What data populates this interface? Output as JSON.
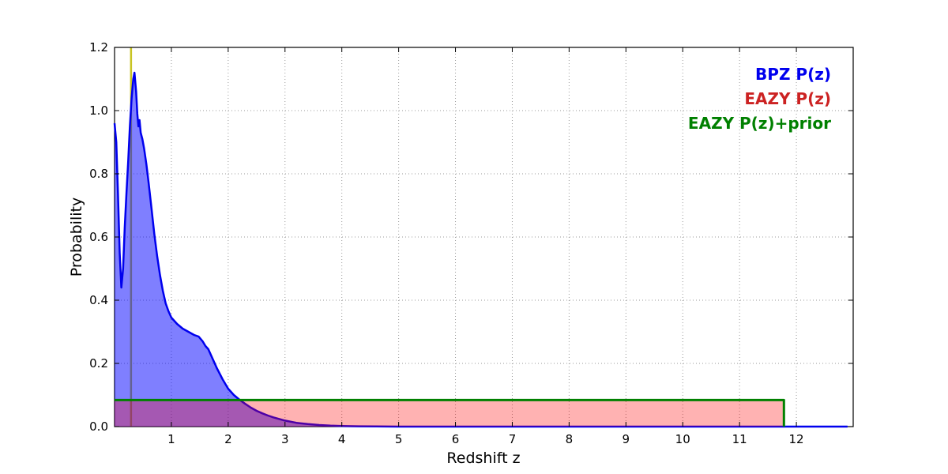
{
  "chart_data": {
    "type": "area",
    "title": "",
    "xlabel": "Redshift z",
    "ylabel": "Probability",
    "xlim": [
      0,
      13.0
    ],
    "ylim": [
      0,
      1.2
    ],
    "xticks": [
      1,
      2,
      3,
      4,
      5,
      6,
      7,
      8,
      9,
      10,
      11,
      12
    ],
    "yticks": [
      0.0,
      0.2,
      0.4,
      0.6,
      0.8,
      1.0,
      1.2
    ],
    "grid": true,
    "grid_color": "#9a9a9a",
    "legend_position": "upper right",
    "vline": {
      "x": 0.29,
      "color": "#c8c423",
      "width": 2.5
    },
    "series": [
      {
        "name": "BPZ P(z)",
        "color": "#0000ee",
        "fill": "rgba(0,0,255,0.5)",
        "line_width": 2.5,
        "points": [
          [
            0.0,
            0.96
          ],
          [
            0.03,
            0.9
          ],
          [
            0.06,
            0.74
          ],
          [
            0.09,
            0.55
          ],
          [
            0.12,
            0.44
          ],
          [
            0.15,
            0.5
          ],
          [
            0.18,
            0.63
          ],
          [
            0.21,
            0.74
          ],
          [
            0.24,
            0.84
          ],
          [
            0.27,
            0.95
          ],
          [
            0.3,
            1.04
          ],
          [
            0.33,
            1.1
          ],
          [
            0.35,
            1.12
          ],
          [
            0.38,
            1.06
          ],
          [
            0.4,
            0.99
          ],
          [
            0.42,
            0.95
          ],
          [
            0.44,
            0.97
          ],
          [
            0.46,
            0.93
          ],
          [
            0.49,
            0.91
          ],
          [
            0.52,
            0.88
          ],
          [
            0.56,
            0.83
          ],
          [
            0.6,
            0.77
          ],
          [
            0.65,
            0.69
          ],
          [
            0.7,
            0.61
          ],
          [
            0.75,
            0.54
          ],
          [
            0.8,
            0.48
          ],
          [
            0.85,
            0.43
          ],
          [
            0.9,
            0.39
          ],
          [
            0.95,
            0.365
          ],
          [
            1.0,
            0.345
          ],
          [
            1.1,
            0.325
          ],
          [
            1.2,
            0.31
          ],
          [
            1.3,
            0.3
          ],
          [
            1.4,
            0.29
          ],
          [
            1.48,
            0.285
          ],
          [
            1.55,
            0.27
          ],
          [
            1.6,
            0.255
          ],
          [
            1.65,
            0.245
          ],
          [
            1.7,
            0.225
          ],
          [
            1.8,
            0.185
          ],
          [
            1.9,
            0.15
          ],
          [
            2.0,
            0.12
          ],
          [
            2.1,
            0.1
          ],
          [
            2.2,
            0.085
          ],
          [
            2.3,
            0.072
          ],
          [
            2.4,
            0.06
          ],
          [
            2.5,
            0.05
          ],
          [
            2.6,
            0.042
          ],
          [
            2.7,
            0.035
          ],
          [
            2.8,
            0.029
          ],
          [
            2.9,
            0.024
          ],
          [
            3.0,
            0.019
          ],
          [
            3.2,
            0.012
          ],
          [
            3.4,
            0.008
          ],
          [
            3.6,
            0.005
          ],
          [
            3.8,
            0.003
          ],
          [
            4.0,
            0.002
          ],
          [
            4.3,
            0.001
          ],
          [
            4.6,
            0.0005
          ],
          [
            5.0,
            0
          ],
          [
            12.9,
            0
          ]
        ]
      },
      {
        "name": "EAZY P(z)",
        "color": "#cc2222",
        "fill": "rgba(255,0,0,0.3)",
        "line_width": 2,
        "points": [
          [
            0,
            0.084
          ],
          [
            11.78,
            0.084
          ],
          [
            11.78,
            0
          ]
        ]
      },
      {
        "name": "EAZY P(z)+prior",
        "color": "#008000",
        "fill": "none",
        "line_width": 3,
        "points": [
          [
            0,
            0.084
          ],
          [
            11.78,
            0.084
          ],
          [
            11.78,
            0
          ]
        ]
      }
    ]
  }
}
